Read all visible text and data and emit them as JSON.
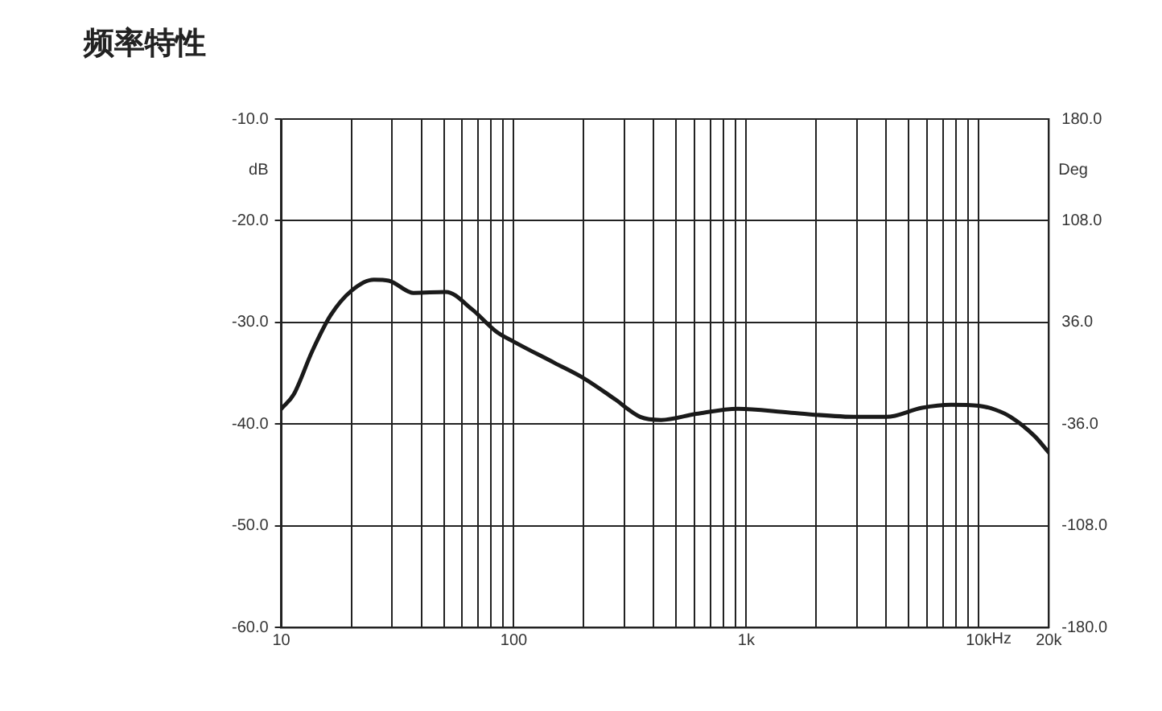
{
  "chart_data": {
    "type": "line",
    "title": "频率特性",
    "xlabel": "Hz",
    "ylabel": "dB",
    "y2label": "Deg",
    "log": "x",
    "grid": true,
    "legend": false,
    "marker": "none",
    "line_style": "solid",
    "xlim": [
      10,
      20000
    ],
    "xticks": [
      {
        "value": 10,
        "label": "10"
      },
      {
        "value": 20,
        "label": null
      },
      {
        "value": 30,
        "label": null
      },
      {
        "value": 40,
        "label": null
      },
      {
        "value": 50,
        "label": null
      },
      {
        "value": 60,
        "label": null
      },
      {
        "value": 70,
        "label": null
      },
      {
        "value": 80,
        "label": null
      },
      {
        "value": 90,
        "label": null
      },
      {
        "value": 100,
        "label": "100"
      },
      {
        "value": 200,
        "label": null
      },
      {
        "value": 300,
        "label": null
      },
      {
        "value": 400,
        "label": null
      },
      {
        "value": 500,
        "label": null
      },
      {
        "value": 600,
        "label": null
      },
      {
        "value": 700,
        "label": null
      },
      {
        "value": 800,
        "label": null
      },
      {
        "value": 900,
        "label": null
      },
      {
        "value": 1000,
        "label": "1k"
      },
      {
        "value": 2000,
        "label": null
      },
      {
        "value": 3000,
        "label": null
      },
      {
        "value": 4000,
        "label": null
      },
      {
        "value": 5000,
        "label": null
      },
      {
        "value": 6000,
        "label": null
      },
      {
        "value": 7000,
        "label": null
      },
      {
        "value": 8000,
        "label": null
      },
      {
        "value": 9000,
        "label": null
      },
      {
        "value": 10000,
        "label": "10k"
      },
      {
        "value": 20000,
        "label": "20k"
      }
    ],
    "ylim": [
      -60,
      -10
    ],
    "yticks": [
      {
        "value": -60,
        "label": "-60.0"
      },
      {
        "value": -50,
        "label": "-50.0"
      },
      {
        "value": -40,
        "label": "-40.0"
      },
      {
        "value": -30,
        "label": "-30.0"
      },
      {
        "value": -20,
        "label": "-20.0"
      },
      {
        "value": -10,
        "label": "-10.0"
      }
    ],
    "y2lim": [
      -180,
      180
    ],
    "y2ticks": [
      {
        "value": -180,
        "label": "-180.0"
      },
      {
        "value": -108,
        "label": "-108.0"
      },
      {
        "value": -36,
        "label": "-36.0"
      },
      {
        "value": 36,
        "label": "36.0"
      },
      {
        "value": 108,
        "label": "108.0"
      },
      {
        "value": 180,
        "label": "180.0"
      }
    ],
    "series": [
      {
        "color": "#1a1a1a",
        "x": [
          10,
          11.3,
          13.6,
          16.3,
          20,
          25,
          29,
          37,
          51,
          66,
          84,
          100,
          150,
          200,
          270,
          350,
          430,
          610,
          920,
          1560,
          3000,
          4000,
          5700,
          7600,
          10000,
          11800,
          13700,
          17400,
          20000
        ],
        "values": [
          -38.5,
          -37.1,
          -32.8,
          -29.3,
          -26.9,
          -25.8,
          -25.9,
          -27.1,
          -27.0,
          -28.7,
          -30.9,
          -31.9,
          -34.0,
          -35.5,
          -37.5,
          -39.3,
          -39.6,
          -39.0,
          -38.5,
          -38.9,
          -39.3,
          -39.3,
          -38.4,
          -38.1,
          -38.2,
          -38.6,
          -39.3,
          -41.2,
          -42.8
        ]
      }
    ]
  }
}
